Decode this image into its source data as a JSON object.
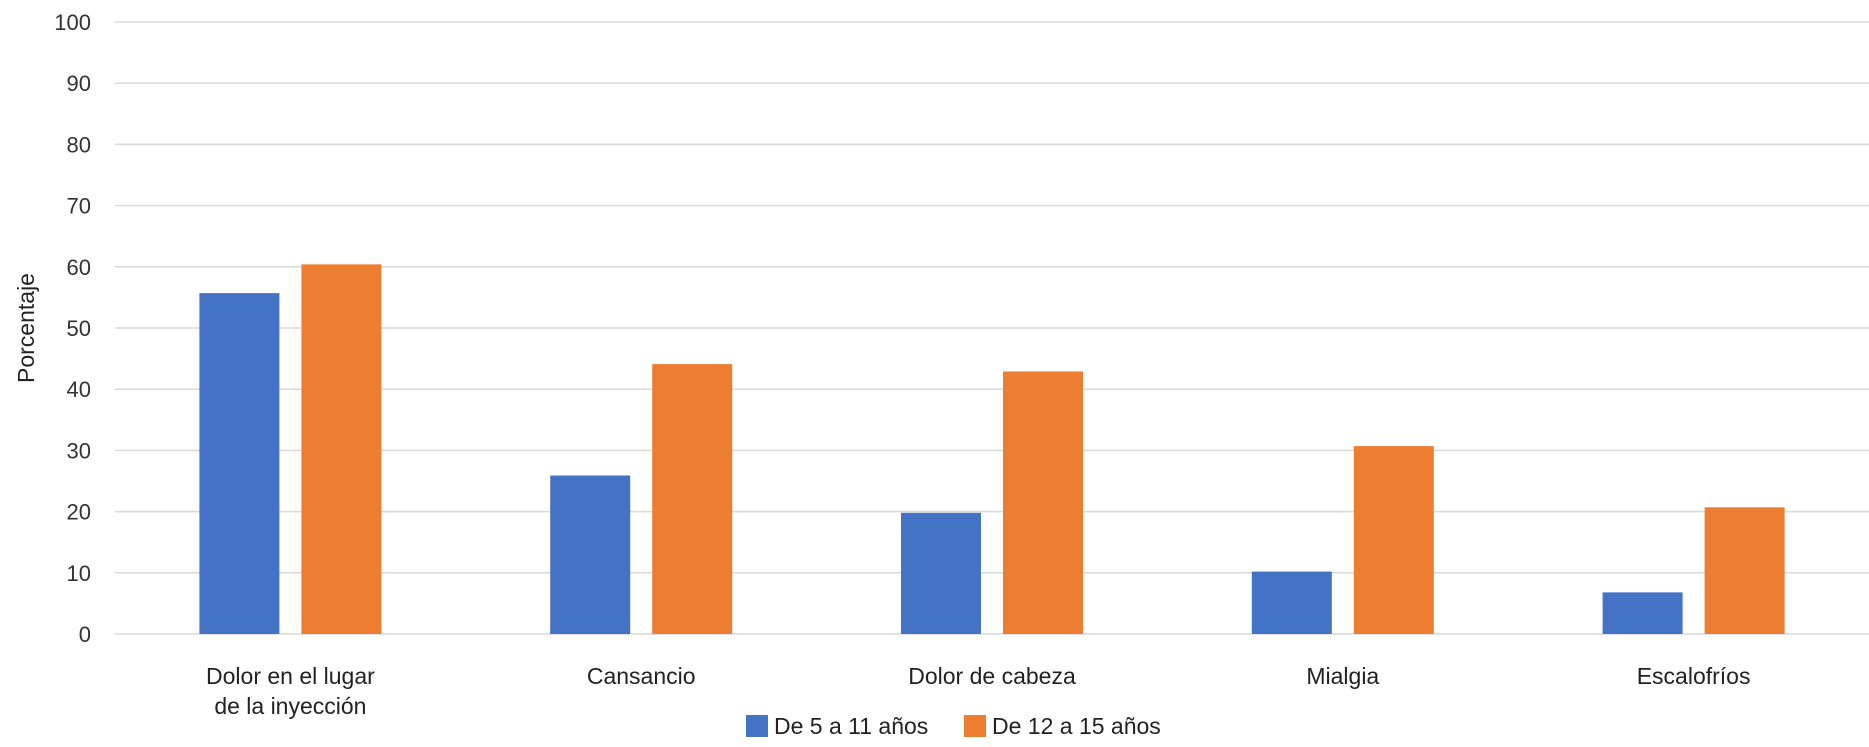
{
  "chart_data": {
    "type": "bar",
    "title": "",
    "xlabel": "",
    "ylabel": "Porcentaje",
    "ylim": [
      0,
      100
    ],
    "yticks": [
      0,
      10,
      20,
      30,
      40,
      50,
      60,
      70,
      80,
      90,
      100
    ],
    "grid": true,
    "legend_position": "bottom",
    "categories": [
      [
        "Dolor en el lugar",
        "de la inyección"
      ],
      [
        "Cansancio"
      ],
      [
        "Dolor de cabeza"
      ],
      [
        "Mialgia"
      ],
      [
        "Escalofríos"
      ]
    ],
    "series": [
      {
        "name": "De 5 a 11 años",
        "color": "#4472C4",
        "values": [
          55.7,
          25.9,
          19.8,
          10.2,
          6.8
        ]
      },
      {
        "name": "De 12 a 15 años",
        "color": "#ED7D31",
        "values": [
          60.4,
          44.1,
          42.9,
          30.7,
          20.7
        ]
      }
    ]
  }
}
